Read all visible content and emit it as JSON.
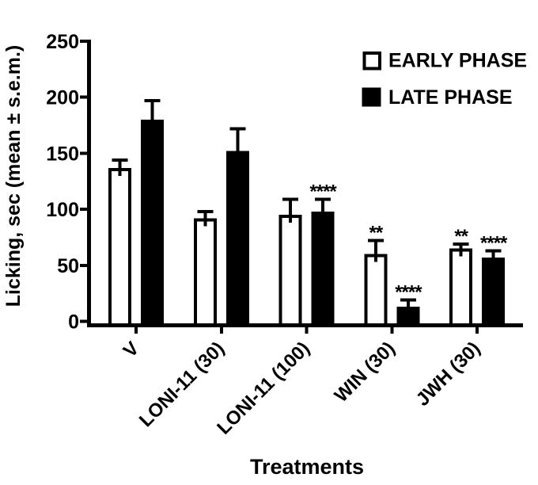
{
  "figure": {
    "background_color": "#ffffff",
    "axis_color": "#000000"
  },
  "chart_data": {
    "type": "bar",
    "title": "",
    "xlabel": "Treatments",
    "ylabel": "Licking, sec (mean ± s.e.m.)",
    "ylim": [
      0,
      250
    ],
    "ytick_step": 50,
    "yticks": [
      0,
      50,
      100,
      150,
      200,
      250
    ],
    "grid": false,
    "legend_position": "top-right",
    "error_bars": "sem",
    "categories": [
      "V",
      "LONI-11 (30)",
      "LONI-11 (100)",
      "WIN (30)",
      "JWH (30)"
    ],
    "series": [
      {
        "name": "EARLY PHASE",
        "fill": "#ffffff",
        "stroke": "#000000",
        "values": [
          137,
          92,
          95,
          60,
          65
        ],
        "sem": [
          7,
          6,
          14,
          12,
          4
        ],
        "significance": [
          "",
          "",
          "",
          "**",
          "**"
        ]
      },
      {
        "name": "LATE PHASE",
        "fill": "#000000",
        "stroke": "#000000",
        "values": [
          180,
          152,
          98,
          13,
          57
        ],
        "sem": [
          17,
          20,
          11,
          6,
          6
        ],
        "significance": [
          "",
          "",
          "****",
          "****",
          "****"
        ]
      }
    ]
  }
}
